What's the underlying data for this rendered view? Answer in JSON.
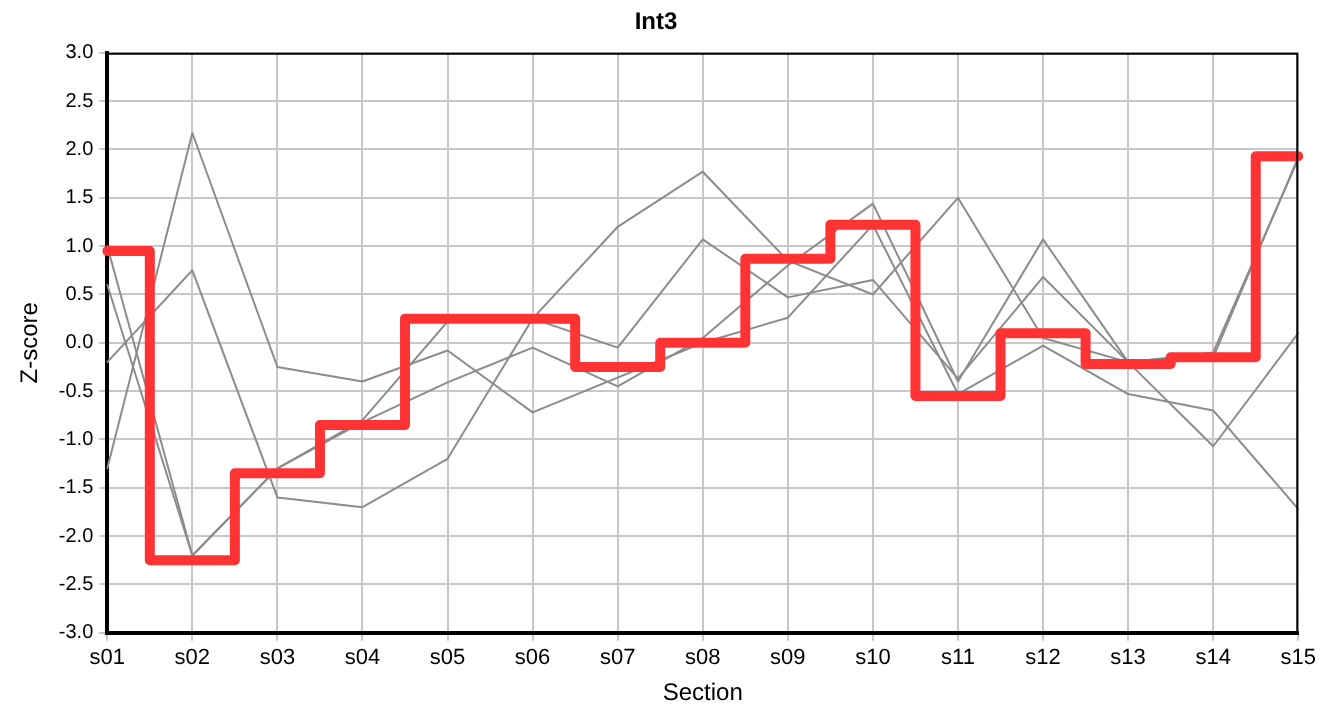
{
  "chart_data": {
    "type": "line",
    "title": "Int3",
    "xlabel": "Section",
    "ylabel": "Z-score",
    "categories": [
      "s01",
      "s02",
      "s03",
      "s04",
      "s05",
      "s06",
      "s07",
      "s08",
      "s09",
      "s10",
      "s11",
      "s12",
      "s13",
      "s14",
      "s15"
    ],
    "series": [
      {
        "color": "#8c8c8c",
        "values": [
          1.0,
          -2.2,
          -1.3,
          -0.8,
          0.22,
          0.25,
          1.2,
          1.77,
          0.85,
          0.5,
          1.5,
          0.05,
          -0.2,
          -0.1,
          1.9
        ]
      },
      {
        "color": "#8c8c8c",
        "values": [
          0.6,
          -2.2,
          -1.3,
          -0.82,
          -0.41,
          -0.05,
          -0.45,
          0.05,
          0.8,
          1.44,
          -0.4,
          1.07,
          -0.2,
          -0.15,
          1.92
        ]
      },
      {
        "color": "#8c8c8c",
        "values": [
          -0.2,
          0.75,
          -1.6,
          -1.7,
          -1.2,
          0.25,
          -0.05,
          1.07,
          0.47,
          0.65,
          -0.37,
          0.68,
          -0.2,
          -1.07,
          0.1
        ]
      },
      {
        "color": "#8c8c8c",
        "values": [
          -1.3,
          2.17,
          -0.25,
          -0.4,
          -0.08,
          -0.72,
          null,
          0.0,
          0.26,
          1.22,
          -0.53,
          -0.03,
          -0.53,
          -0.7,
          -1.72
        ]
      },
      {
        "type": "step",
        "color": "#ff3333",
        "values": [
          0.95,
          -2.25,
          -1.35,
          -0.85,
          0.25,
          0.25,
          -0.25,
          0.0,
          0.87,
          1.22,
          -0.55,
          0.1,
          -0.22,
          -0.15,
          1.93
        ]
      }
    ],
    "ylim": [
      -3,
      3
    ],
    "yticks": [
      {
        "value": -3,
        "label": "-3.0"
      },
      {
        "value": -2.5,
        "label": "-2.5"
      },
      {
        "value": -2,
        "label": "-2.0"
      },
      {
        "value": -1.5,
        "label": "-1.5"
      },
      {
        "value": -1,
        "label": "-1.0"
      },
      {
        "value": -0.5,
        "label": "-0.5"
      },
      {
        "value": 0,
        "label": "0.0"
      },
      {
        "value": 0.5,
        "label": "0.5"
      },
      {
        "value": 1,
        "label": "1.0"
      },
      {
        "value": 1.5,
        "label": "1.5"
      },
      {
        "value": 2,
        "label": "2.0"
      },
      {
        "value": 2.5,
        "label": "2.5"
      },
      {
        "value": 3,
        "label": "3.0"
      }
    ],
    "grid": true,
    "legend": false,
    "marker": "none",
    "line_style": "solid"
  }
}
